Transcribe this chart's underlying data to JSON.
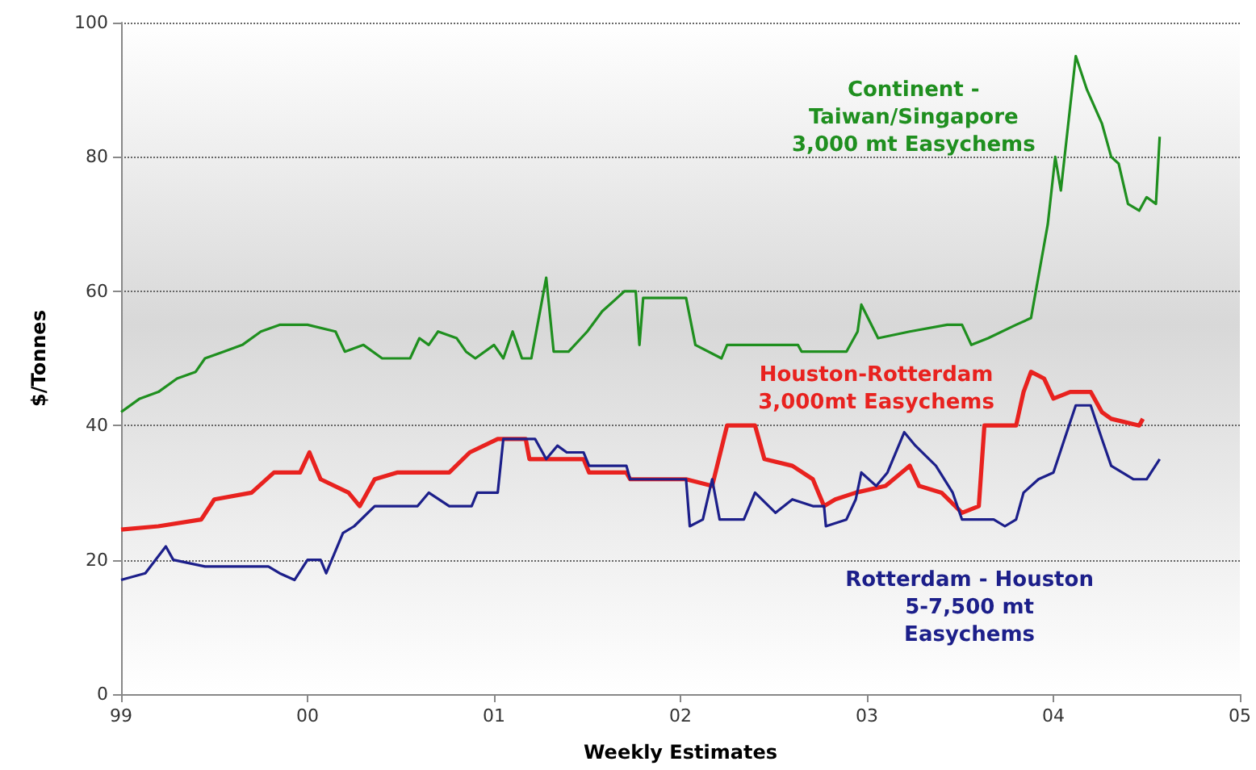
{
  "chart_data": {
    "type": "line",
    "xlabel": "Weekly Estimates",
    "ylabel": "$/Tonnes",
    "xlim": [
      1999,
      2005
    ],
    "xticks": [
      {
        "value": 1999,
        "label": "99"
      },
      {
        "value": 2000,
        "label": "00"
      },
      {
        "value": 2001,
        "label": "01"
      },
      {
        "value": 2002,
        "label": "02"
      },
      {
        "value": 2003,
        "label": "03"
      },
      {
        "value": 2004,
        "label": "04"
      },
      {
        "value": 2005,
        "label": "05"
      }
    ],
    "ylim": [
      0,
      100
    ],
    "yticks": [
      0,
      20,
      40,
      60,
      80,
      100
    ],
    "grid": "y",
    "legend": false,
    "marker": "none",
    "line_style": "solid",
    "series": [
      {
        "name": "Continent -\nTaiwan/Singapore\n3,000 mt Easychems",
        "color": "#1f8f1f",
        "x": [
          1999.0,
          1999.1,
          1999.2,
          1999.3,
          1999.4,
          1999.45,
          1999.55,
          1999.65,
          1999.75,
          1999.85,
          2000.0,
          2000.15,
          2000.2,
          2000.3,
          2000.4,
          2000.55,
          2000.6,
          2000.65,
          2000.7,
          2000.8,
          2000.85,
          2000.9,
          2001.0,
          2001.05,
          2001.1,
          2001.15,
          2001.2,
          2001.28,
          2001.32,
          2001.4,
          2001.5,
          2001.58,
          2001.7,
          2001.76,
          2001.78,
          2001.8,
          2001.97,
          2002.03,
          2002.08,
          2002.22,
          2002.25,
          2002.63,
          2002.65,
          2002.89,
          2002.95,
          2002.97,
          2003.06,
          2003.23,
          2003.43,
          2003.51,
          2003.56,
          2003.65,
          2003.8,
          2003.88,
          2003.97,
          2004.01,
          2004.04,
          2004.12,
          2004.18,
          2004.26,
          2004.31,
          2004.35,
          2004.4,
          2004.46,
          2004.5,
          2004.55,
          2004.57
        ],
        "values": [
          42,
          44,
          45,
          47,
          48,
          50,
          51,
          52,
          54,
          55,
          55,
          54,
          51,
          52,
          50,
          50,
          53,
          52,
          54,
          53,
          51,
          50,
          52,
          50,
          54,
          50,
          50,
          62,
          51,
          51,
          54,
          57,
          60,
          60,
          52,
          59,
          59,
          59,
          52,
          50,
          52,
          52,
          51,
          51,
          54,
          58,
          53,
          54,
          55,
          55,
          52,
          53,
          55,
          56,
          70,
          80,
          75,
          95,
          90,
          85,
          80,
          79,
          73,
          72,
          74,
          73,
          83
        ]
      },
      {
        "name": "Houston-Rotterdam\n3,000mt Easychems",
        "color": "#e8221f",
        "x": [
          1999.0,
          1999.2,
          1999.43,
          1999.5,
          1999.7,
          1999.82,
          1999.96,
          2000.01,
          2000.07,
          2000.22,
          2000.28,
          2000.36,
          2000.48,
          2000.76,
          2000.87,
          2001.02,
          2001.17,
          2001.19,
          2001.48,
          2001.51,
          2001.71,
          2001.73,
          2001.97,
          2002.03,
          2002.17,
          2002.25,
          2002.4,
          2002.45,
          2002.6,
          2002.71,
          2002.77,
          2002.83,
          2002.94,
          2003.1,
          2003.23,
          2003.28,
          2003.4,
          2003.51,
          2003.6,
          2003.63,
          2003.8,
          2003.84,
          2003.88,
          2003.95,
          2004.0,
          2004.09,
          2004.2,
          2004.26,
          2004.31,
          2004.46,
          2004.48
        ],
        "values": [
          24.5,
          25,
          26,
          29,
          30,
          33,
          33,
          36,
          32,
          30,
          28,
          32,
          33,
          33,
          36,
          38,
          38,
          35,
          35,
          33,
          33,
          32,
          32,
          32,
          31,
          40,
          40,
          35,
          34,
          32,
          28,
          29,
          30,
          31,
          34,
          31,
          30,
          27,
          28,
          40,
          40,
          45,
          48,
          47,
          44,
          45,
          45,
          42,
          41,
          40,
          41
        ]
      },
      {
        "name": "Rotterdam - Houston\n5-7,500 mt\nEasychems",
        "color": "#1c1f8a",
        "x": [
          1999.0,
          1999.13,
          1999.24,
          1999.28,
          1999.45,
          1999.79,
          1999.85,
          1999.93,
          2000.0,
          2000.07,
          2000.1,
          2000.19,
          2000.25,
          2000.36,
          2000.59,
          2000.65,
          2000.76,
          2000.88,
          2000.91,
          2001.02,
          2001.05,
          2001.22,
          2001.28,
          2001.34,
          2001.39,
          2001.48,
          2001.51,
          2001.71,
          2001.73,
          2002.03,
          2002.05,
          2002.12,
          2002.17,
          2002.21,
          2002.34,
          2002.4,
          2002.51,
          2002.6,
          2002.71,
          2002.77,
          2002.78,
          2002.89,
          2002.94,
          2002.97,
          2003.05,
          2003.11,
          2003.2,
          2003.26,
          2003.37,
          2003.46,
          2003.51,
          2003.68,
          2003.74,
          2003.8,
          2003.84,
          2003.92,
          2004.0,
          2004.06,
          2004.12,
          2004.2,
          2004.26,
          2004.31,
          2004.43,
          2004.5,
          2004.57
        ],
        "values": [
          17,
          18,
          22,
          20,
          19,
          19,
          18,
          17,
          20,
          20,
          18,
          24,
          25,
          28,
          28,
          30,
          28,
          28,
          30,
          30,
          38,
          38,
          35,
          37,
          36,
          36,
          34,
          34,
          32,
          32,
          25,
          26,
          32,
          26,
          26,
          30,
          27,
          29,
          28,
          28,
          25,
          26,
          29,
          33,
          31,
          33,
          39,
          37,
          34,
          30,
          26,
          26,
          25,
          26,
          30,
          32,
          33,
          38,
          43,
          43,
          38,
          34,
          32,
          32,
          35
        ]
      }
    ]
  }
}
